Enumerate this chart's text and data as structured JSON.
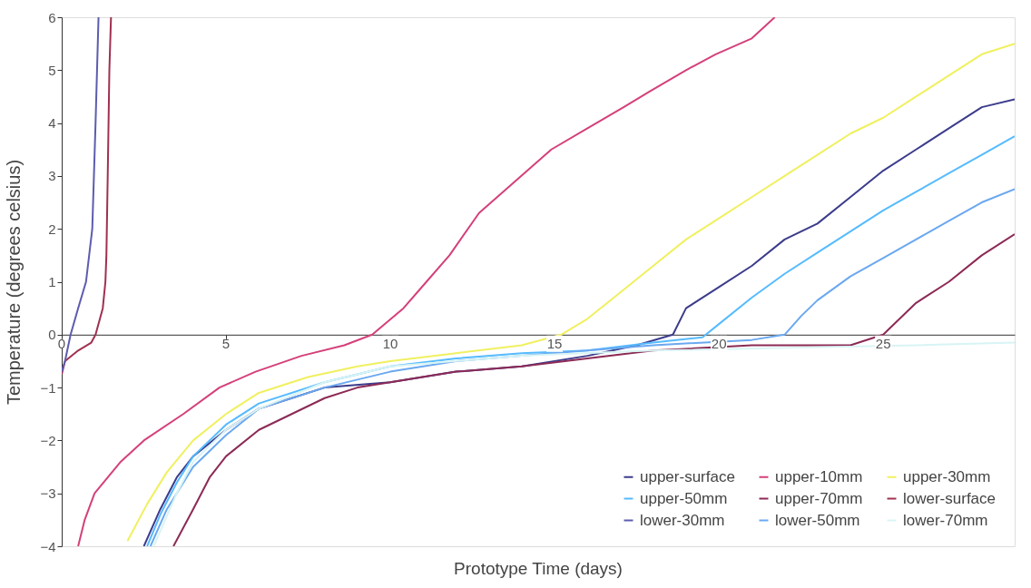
{
  "chart_data": {
    "type": "line",
    "xlabel": "Prototype Time (days)",
    "ylabel": "Temperature (degrees celsius)",
    "xlim": [
      0,
      29
    ],
    "ylim": [
      -4,
      6
    ],
    "xticks": [
      0,
      5,
      10,
      15,
      20,
      25
    ],
    "yticks": [
      -4,
      -3,
      -2,
      -1,
      0,
      1,
      2,
      3,
      4,
      5,
      6
    ],
    "grid": false,
    "legend": "bottom right",
    "marker": "none",
    "line_style": "solid",
    "series": [
      {
        "name": "upper-surface",
        "color": "#3c3c8c",
        "x": [
          2.5,
          3,
          3.5,
          4,
          5,
          6,
          7,
          8,
          10,
          12,
          14,
          16,
          17.5,
          18.6,
          19,
          20,
          21,
          22,
          23,
          24,
          25,
          26,
          27,
          28,
          29
        ],
        "values": [
          -4,
          -3.3,
          -2.7,
          -2.3,
          -1.8,
          -1.4,
          -1.2,
          -1.0,
          -0.9,
          -0.7,
          -0.6,
          -0.4,
          -0.2,
          0,
          0.5,
          0.9,
          1.3,
          1.8,
          2.1,
          2.6,
          3.1,
          3.5,
          3.9,
          4.3,
          4.45
        ]
      },
      {
        "name": "upper-10mm",
        "color": "#d4407a",
        "x": [
          0.5,
          0.7,
          1.0,
          1.8,
          2.5,
          3.7,
          4.8,
          5.9,
          7.3,
          8.6,
          9.45,
          10.4,
          11.1,
          11.8,
          12.7,
          13.8,
          14.9,
          16.0,
          17.1,
          17.9,
          19.0,
          19.9,
          21.0,
          21.7
        ],
        "values": [
          -4,
          -3.5,
          -3,
          -2.4,
          -2.0,
          -1.5,
          -1.0,
          -0.7,
          -0.4,
          -0.2,
          0,
          0.5,
          1,
          1.5,
          2.3,
          2.9,
          3.5,
          3.9,
          4.3,
          4.6,
          5.0,
          5.3,
          5.6,
          6.0
        ]
      },
      {
        "name": "upper-30mm",
        "color": "#f0f060",
        "x": [
          2.0,
          2.6,
          3.2,
          4,
          5,
          6,
          7.5,
          9,
          10,
          12,
          14,
          15.2,
          16,
          17,
          18,
          19,
          20,
          21,
          22,
          23,
          24,
          25,
          26,
          27,
          28,
          29
        ],
        "values": [
          -3.9,
          -3.2,
          -2.6,
          -2.0,
          -1.5,
          -1.1,
          -0.8,
          -0.6,
          -0.5,
          -0.35,
          -0.2,
          0,
          0.3,
          0.8,
          1.3,
          1.8,
          2.2,
          2.6,
          3.0,
          3.4,
          3.8,
          4.1,
          4.5,
          4.9,
          5.3,
          5.5
        ]
      },
      {
        "name": "upper-50mm",
        "color": "#55bbff",
        "x": [
          2.6,
          3,
          3.5,
          4,
          5,
          6,
          8,
          10,
          12,
          14,
          16,
          18,
          19.5,
          20,
          21,
          22,
          23,
          24,
          25,
          26,
          27,
          28,
          29
        ],
        "values": [
          -4,
          -3.4,
          -2.8,
          -2.3,
          -1.7,
          -1.3,
          -0.9,
          -0.6,
          -0.45,
          -0.35,
          -0.3,
          -0.15,
          -0.05,
          0.2,
          0.7,
          1.15,
          1.55,
          1.95,
          2.35,
          2.7,
          3.05,
          3.4,
          3.75
        ]
      },
      {
        "name": "upper-70mm",
        "color": "#8c2a55",
        "x": [
          3.4,
          4,
          4.5,
          5,
          6,
          7,
          8,
          9,
          10,
          12,
          14,
          16,
          18,
          21,
          22,
          24,
          25,
          25.5,
          26,
          27,
          28,
          29
        ],
        "values": [
          -4,
          -3.3,
          -2.7,
          -2.3,
          -1.8,
          -1.5,
          -1.2,
          -1.0,
          -0.9,
          -0.7,
          -0.6,
          -0.45,
          -0.3,
          -0.2,
          -0.2,
          -0.2,
          0,
          0.3,
          0.6,
          1.0,
          1.5,
          1.9
        ]
      },
      {
        "name": "lower-surface",
        "color": "#a03050",
        "x": [
          0,
          0.1,
          0.5,
          0.9,
          1.03,
          1.25,
          1.33,
          1.36,
          1.4,
          1.45,
          1.5
        ],
        "values": [
          -0.75,
          -0.5,
          -0.3,
          -0.15,
          0,
          0.5,
          1,
          1.5,
          3,
          5,
          6
        ]
      },
      {
        "name": "lower-30mm",
        "color": "#5c5cb0",
        "x": [
          0,
          0.1,
          0.27,
          0.5,
          0.74,
          0.93,
          1.03,
          1.12
        ],
        "values": [
          -0.7,
          -0.5,
          0,
          0.5,
          1,
          2,
          4,
          6
        ]
      },
      {
        "name": "lower-50mm",
        "color": "#6aa8f0",
        "x": [
          2.7,
          3.2,
          4,
          5,
          6,
          8,
          10,
          12,
          14,
          16,
          18,
          21,
          22,
          22.5,
          23,
          24,
          25,
          26,
          27,
          28,
          29
        ],
        "values": [
          -4,
          -3.3,
          -2.5,
          -1.9,
          -1.4,
          -1.0,
          -0.7,
          -0.5,
          -0.4,
          -0.3,
          -0.2,
          -0.1,
          0,
          0.35,
          0.65,
          1.1,
          1.45,
          1.8,
          2.15,
          2.5,
          2.75
        ]
      },
      {
        "name": "lower-70mm",
        "color": "#d8f4f4",
        "x": [
          2.8,
          3.5,
          4,
          5,
          6,
          8,
          10,
          14,
          18,
          22,
          26,
          29
        ],
        "values": [
          -4,
          -3,
          -2.4,
          -1.8,
          -1.4,
          -0.9,
          -0.6,
          -0.4,
          -0.3,
          -0.25,
          -0.2,
          -0.15
        ]
      }
    ]
  }
}
